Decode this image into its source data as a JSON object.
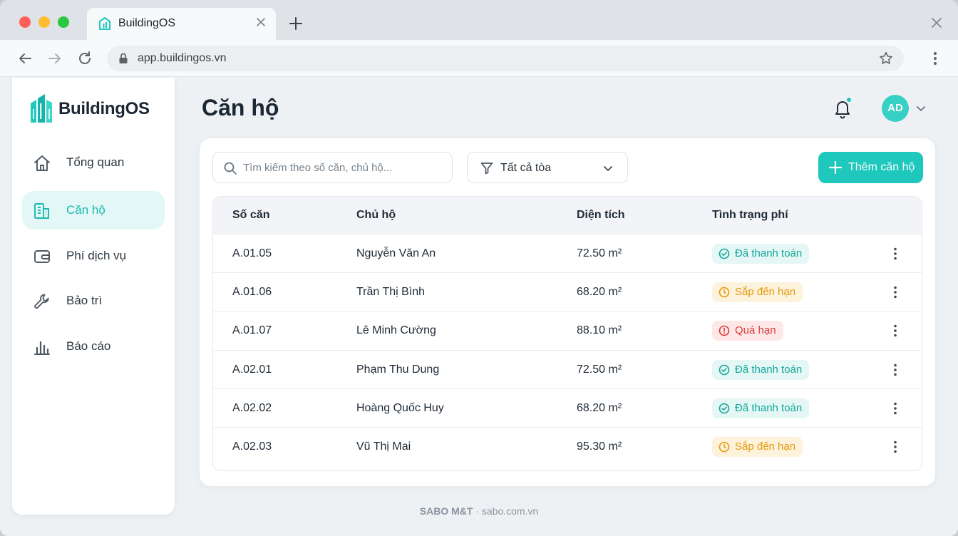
{
  "browser": {
    "tab_title": "BuildingOS",
    "url": "app.buildingos.vn"
  },
  "app": {
    "brand": "BuildingOS",
    "colors": {
      "accent": "#1ec8bd",
      "accent_soft": "#e3f7f6",
      "paid": "#14a79c",
      "due": "#e59a0b",
      "overdue": "#dc3b3b"
    }
  },
  "sidebar": {
    "items": [
      {
        "label": "Tổng quan",
        "icon": "home-icon",
        "active": false
      },
      {
        "label": "Căn hộ",
        "icon": "building-icon",
        "active": true
      },
      {
        "label": "Phí dịch vụ",
        "icon": "wallet-icon",
        "active": false
      },
      {
        "label": "Bảo trì",
        "icon": "wrench-icon",
        "active": false
      },
      {
        "label": "Báo cáo",
        "icon": "bar-chart-icon",
        "active": false
      }
    ]
  },
  "header": {
    "title": "Căn hộ",
    "avatar_initials": "AD"
  },
  "toolbar": {
    "search_placeholder": "Tìm kiếm theo số căn, chủ hộ...",
    "filter_label": "Tất cả tòa",
    "add_label": "Thêm căn hộ"
  },
  "table": {
    "columns": [
      "Số căn",
      "Chủ hộ",
      "Diện tích",
      "Tình trạng phí"
    ],
    "rows": [
      {
        "unit": "A.01.05",
        "owner": "Nguyễn Văn An",
        "area": "72.50 m²",
        "status": "Đã thanh toán",
        "status_type": "paid"
      },
      {
        "unit": "A.01.06",
        "owner": "Trần Thị Bình",
        "area": "68.20 m²",
        "status": "Sắp đến hạn",
        "status_type": "due"
      },
      {
        "unit": "A.01.07",
        "owner": "Lê Minh Cường",
        "area": "88.10 m²",
        "status": "Quá hạn",
        "status_type": "overdue"
      },
      {
        "unit": "A.02.01",
        "owner": "Phạm Thu Dung",
        "area": "72.50 m²",
        "status": "Đã thanh toán",
        "status_type": "paid"
      },
      {
        "unit": "A.02.02",
        "owner": "Hoàng Quốc Huy",
        "area": "68.20 m²",
        "status": "Đã thanh toán",
        "status_type": "paid"
      },
      {
        "unit": "A.02.03",
        "owner": "Vũ Thị Mai",
        "area": "95.30 m²",
        "status": "Sắp đến hạn",
        "status_type": "due"
      }
    ]
  },
  "footer": {
    "brand": "SABO M&T",
    "separator": "·",
    "site": "sabo.com.vn"
  }
}
